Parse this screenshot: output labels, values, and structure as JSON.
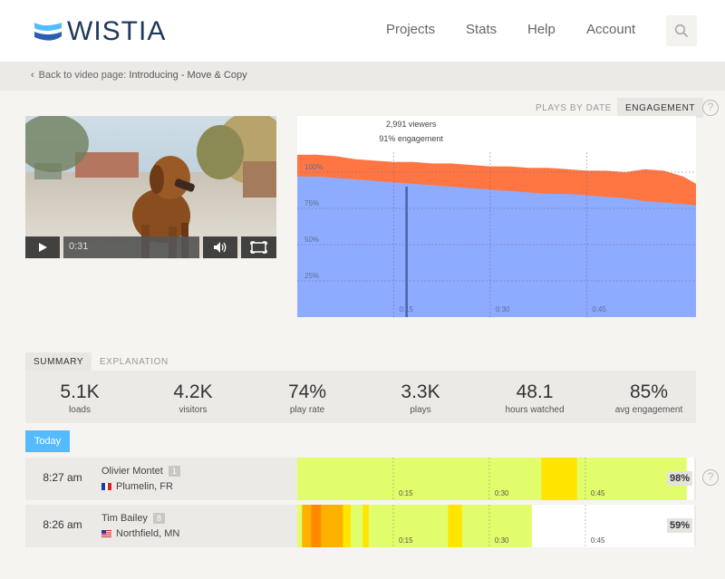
{
  "header": {
    "logo_text": "WISTIA",
    "nav": [
      "Projects",
      "Stats",
      "Help",
      "Account"
    ]
  },
  "breadcrumb": {
    "prefix": "Back to video page: ",
    "title": "Introducing - Move & Copy"
  },
  "view_tabs": [
    "PLAYS BY DATE",
    "ENGAGEMENT"
  ],
  "video": {
    "time": "0:31"
  },
  "chart_data": {
    "type": "area",
    "x_ticks": [
      "0:15",
      "0:30",
      "0:45"
    ],
    "y_ticks": [
      "100%",
      "75%",
      "50%",
      "25%"
    ],
    "tooltip_viewers": "2,991 viewers",
    "tooltip_engagement": "91% engagement",
    "cursor_time_s": 17,
    "duration_s": 62,
    "rewatch": [
      [
        0,
        112
      ],
      [
        3,
        112
      ],
      [
        6,
        111
      ],
      [
        9,
        109
      ],
      [
        12,
        108
      ],
      [
        15,
        107
      ],
      [
        18,
        107
      ],
      [
        21,
        106
      ],
      [
        24,
        106
      ],
      [
        27,
        105
      ],
      [
        30,
        104
      ],
      [
        33,
        104
      ],
      [
        36,
        103
      ],
      [
        39,
        103
      ],
      [
        42,
        102
      ],
      [
        45,
        101
      ],
      [
        48,
        101
      ],
      [
        51,
        100
      ],
      [
        54,
        102
      ],
      [
        57,
        101
      ],
      [
        60,
        97
      ],
      [
        62,
        92
      ]
    ],
    "engagement": [
      [
        0,
        97
      ],
      [
        3,
        97
      ],
      [
        6,
        96
      ],
      [
        9,
        95
      ],
      [
        12,
        94
      ],
      [
        15,
        93
      ],
      [
        18,
        92
      ],
      [
        21,
        91
      ],
      [
        24,
        90
      ],
      [
        27,
        89
      ],
      [
        30,
        88
      ],
      [
        33,
        87
      ],
      [
        36,
        86
      ],
      [
        39,
        85
      ],
      [
        42,
        85
      ],
      [
        45,
        84
      ],
      [
        48,
        83
      ],
      [
        51,
        82
      ],
      [
        54,
        80
      ],
      [
        57,
        79
      ],
      [
        60,
        78
      ],
      [
        62,
        77
      ]
    ],
    "colors": {
      "rewatch": "#ff7643",
      "engagement": "#8eacff"
    }
  },
  "summary_tabs": [
    "SUMMARY",
    "EXPLANATION"
  ],
  "stats": [
    {
      "value": "5.1K",
      "label": "loads"
    },
    {
      "value": "4.2K",
      "label": "visitors"
    },
    {
      "value": "74%",
      "label": "play rate"
    },
    {
      "value": "3.3K",
      "label": "plays"
    },
    {
      "value": "48.1",
      "label": "hours watched"
    },
    {
      "value": "85%",
      "label": "avg engagement"
    }
  ],
  "today_label": "Today",
  "viewers": [
    {
      "time": "8:27 am",
      "name": "Olivier Montet",
      "count": "1",
      "location": "Plumelin, FR",
      "flag": "fr",
      "percent": "98%",
      "percent_value": 0.98,
      "heat": [
        {
          "from": 0.0,
          "to": 0.615,
          "level": 1
        },
        {
          "from": 0.615,
          "to": 0.705,
          "level": 2
        },
        {
          "from": 0.705,
          "to": 0.98,
          "level": 1
        }
      ]
    },
    {
      "time": "8:26 am",
      "name": "Tim Bailey",
      "count": "8",
      "location": "Northfield, MN",
      "flag": "us",
      "percent": "59%",
      "percent_value": 0.59,
      "heat": [
        {
          "from": 0.0,
          "to": 0.012,
          "level": 1
        },
        {
          "from": 0.012,
          "to": 0.035,
          "level": 3
        },
        {
          "from": 0.035,
          "to": 0.06,
          "level": 4
        },
        {
          "from": 0.06,
          "to": 0.115,
          "level": 3
        },
        {
          "from": 0.115,
          "to": 0.135,
          "level": 2
        },
        {
          "from": 0.135,
          "to": 0.165,
          "level": 1
        },
        {
          "from": 0.165,
          "to": 0.18,
          "level": 2
        },
        {
          "from": 0.18,
          "to": 0.38,
          "level": 1
        },
        {
          "from": 0.38,
          "to": 0.415,
          "level": 2
        },
        {
          "from": 0.415,
          "to": 0.59,
          "level": 1
        }
      ]
    }
  ],
  "heat_colors": {
    "1": "#e2fd6b",
    "2": "#ffe500",
    "3": "#ffb100",
    "4": "#ff8a00"
  }
}
